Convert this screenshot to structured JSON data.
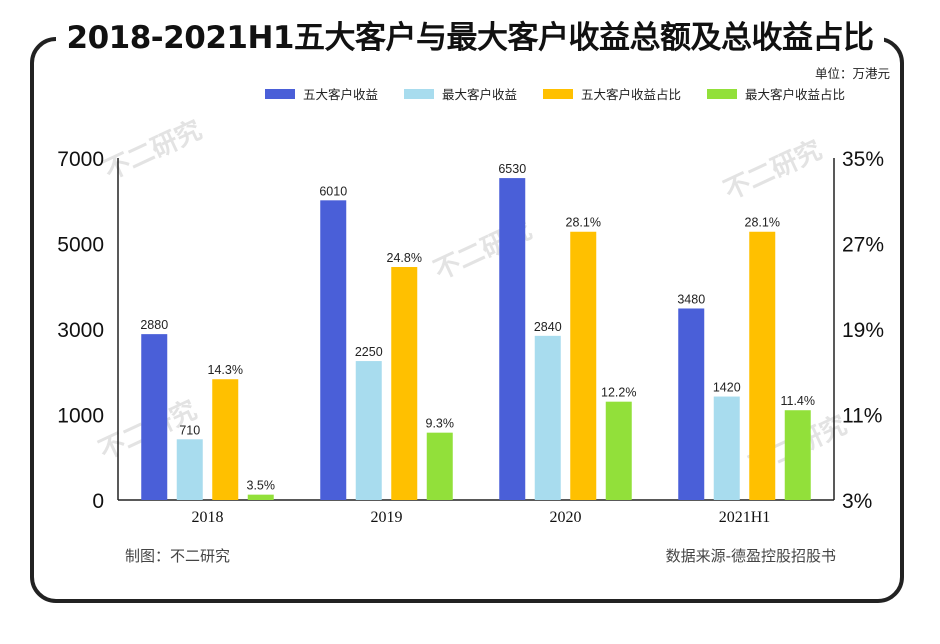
{
  "title": "2018-2021H1五大客户与最大客户收益总额及总收益占比",
  "unit_label": "单位：万港元",
  "footer": {
    "left": "制图：不二研究",
    "right": "数据来源-德盈控股招股书"
  },
  "watermark": "不二研究",
  "chart_data": {
    "type": "bar",
    "categories": [
      "2018",
      "2019",
      "2020",
      "2021H1"
    ],
    "series": [
      {
        "name": "五大客户收益",
        "axis": "left",
        "color": "#4a5fd8",
        "values": [
          2880,
          6010,
          6530,
          3480
        ],
        "labels": [
          "2880",
          "6010",
          "6530",
          "3480"
        ]
      },
      {
        "name": "最大客户收益",
        "axis": "left",
        "color": "#a8dcee",
        "values": [
          710,
          2250,
          2840,
          1420
        ],
        "labels": [
          "710",
          "2250",
          "2840",
          "1420"
        ]
      },
      {
        "name": "五大客户收益占比",
        "axis": "right",
        "color": "#ffc000",
        "values": [
          14.3,
          24.8,
          28.1,
          28.1
        ],
        "labels": [
          "14.3%",
          "24.8%",
          "28.1%",
          "28.1%"
        ]
      },
      {
        "name": "最大客户收益占比",
        "axis": "right",
        "color": "#92e03a",
        "values": [
          3.5,
          9.3,
          12.2,
          11.4
        ],
        "labels": [
          "3.5%",
          "9.3%",
          "12.2%",
          "11.4%"
        ]
      }
    ],
    "left_axis": {
      "ticks": [
        "0",
        "1000",
        "3000",
        "5000",
        "7000"
      ],
      "ylim": [
        0,
        8000
      ]
    },
    "right_axis": {
      "ticks": [
        "3%",
        "11%",
        "19%",
        "27%",
        "35%"
      ],
      "ylim": [
        3,
        35
      ]
    },
    "grid": false,
    "legend_position": "top"
  }
}
